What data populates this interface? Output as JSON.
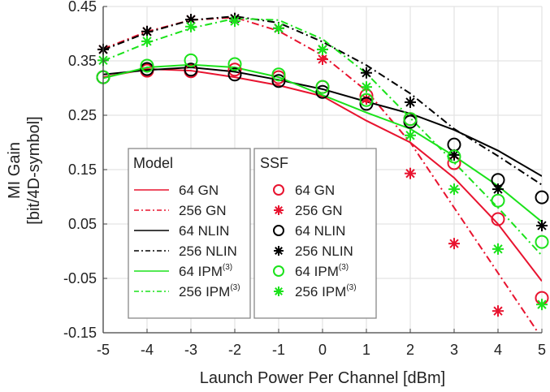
{
  "chart_data": {
    "type": "line",
    "xlabel": "Launch Power Per Channel [dBm]",
    "ylabel": [
      "MI Gain",
      "[bit/4D-symbol]"
    ],
    "xlim": [
      -5,
      5
    ],
    "ylim": [
      -0.15,
      0.45
    ],
    "xticks": [
      "-5",
      "-4",
      "-3",
      "-2",
      "-1",
      "0",
      "1",
      "2",
      "3",
      "4",
      "5"
    ],
    "yticks": [
      "0.45",
      "0.35",
      "0.25",
      "0.15",
      "0.05",
      "-0.05",
      "-0.15"
    ],
    "ytick_values": [
      0.45,
      0.35,
      0.25,
      0.15,
      0.05,
      -0.05,
      -0.15
    ],
    "grid": true,
    "colors": {
      "gn": "#e8132f",
      "nlin": "#000000",
      "ipm": "#1be21b"
    },
    "x": [
      -5,
      -4,
      -3,
      -2,
      -1,
      0,
      1,
      2,
      3,
      4,
      5
    ],
    "legend_model_title": "Model",
    "legend_ssf_title": "SSF",
    "model_series": [
      {
        "name": "64 GN",
        "sup": "",
        "color": "#e8132f",
        "dash": "solid",
        "values": [
          0.32,
          0.335,
          0.332,
          0.32,
          0.305,
          0.285,
          0.24,
          0.2,
          0.135,
          0.05,
          -0.055
        ]
      },
      {
        "name": "256 GN",
        "sup": "",
        "color": "#e8132f",
        "dash": "dashdot",
        "values": [
          0.372,
          0.404,
          0.425,
          0.43,
          0.405,
          0.36,
          0.295,
          0.2,
          0.08,
          -0.04,
          -0.16
        ]
      },
      {
        "name": "64 NLIN",
        "sup": "",
        "color": "#000000",
        "dash": "solid",
        "values": [
          0.325,
          0.333,
          0.338,
          0.33,
          0.315,
          0.298,
          0.275,
          0.253,
          0.223,
          0.185,
          0.138
        ]
      },
      {
        "name": "256 NLIN",
        "sup": "",
        "color": "#000000",
        "dash": "dashdot",
        "values": [
          0.37,
          0.402,
          0.425,
          0.432,
          0.42,
          0.385,
          0.342,
          0.29,
          0.225,
          0.175,
          0.122
        ]
      },
      {
        "name": "64 IPM",
        "sup": "(3)",
        "color": "#1be21b",
        "dash": "solid",
        "values": [
          0.318,
          0.338,
          0.343,
          0.338,
          0.32,
          0.287,
          0.255,
          0.225,
          0.175,
          0.12,
          0.054
        ]
      },
      {
        "name": "256 IPM",
        "sup": "(3)",
        "color": "#1be21b",
        "dash": "dashdot",
        "values": [
          0.35,
          0.383,
          0.41,
          0.428,
          0.425,
          0.39,
          0.327,
          0.245,
          0.163,
          0.08,
          -0.008
        ]
      }
    ],
    "ssf_series": [
      {
        "name": "64 GN",
        "sup": "",
        "color": "#e8132f",
        "marker": "circle",
        "values": [
          0.32,
          0.332,
          0.331,
          0.334,
          0.32,
          0.302,
          0.286,
          0.243,
          0.162,
          0.059,
          -0.086
        ]
      },
      {
        "name": "256 GN",
        "sup": "",
        "color": "#e8132f",
        "marker": "star",
        "values": [
          0.371,
          0.404,
          0.426,
          0.428,
          0.41,
          0.353,
          0.28,
          0.143,
          0.014,
          -0.11,
          null
        ]
      },
      {
        "name": "64 NLIN",
        "sup": "",
        "color": "#000000",
        "marker": "circle",
        "values": [
          0.32,
          0.335,
          0.334,
          0.325,
          0.313,
          0.293,
          0.271,
          0.238,
          0.196,
          0.131,
          0.099
        ]
      },
      {
        "name": "256 NLIN",
        "sup": "",
        "color": "#000000",
        "marker": "star",
        "values": [
          0.371,
          0.404,
          0.426,
          0.428,
          0.41,
          0.371,
          0.328,
          0.274,
          0.177,
          0.114,
          0.047
        ]
      },
      {
        "name": "64 IPM",
        "sup": "(3)",
        "color": "#1be21b",
        "marker": "circle",
        "values": [
          0.32,
          0.341,
          0.351,
          0.344,
          0.325,
          0.302,
          0.278,
          0.243,
          0.174,
          0.093,
          0.017
        ]
      },
      {
        "name": "256 IPM",
        "sup": "(3)",
        "color": "#1be21b",
        "marker": "star",
        "values": [
          0.351,
          0.386,
          0.413,
          0.423,
          0.41,
          0.371,
          0.302,
          0.213,
          0.114,
          0.004,
          -0.098
        ]
      }
    ]
  }
}
